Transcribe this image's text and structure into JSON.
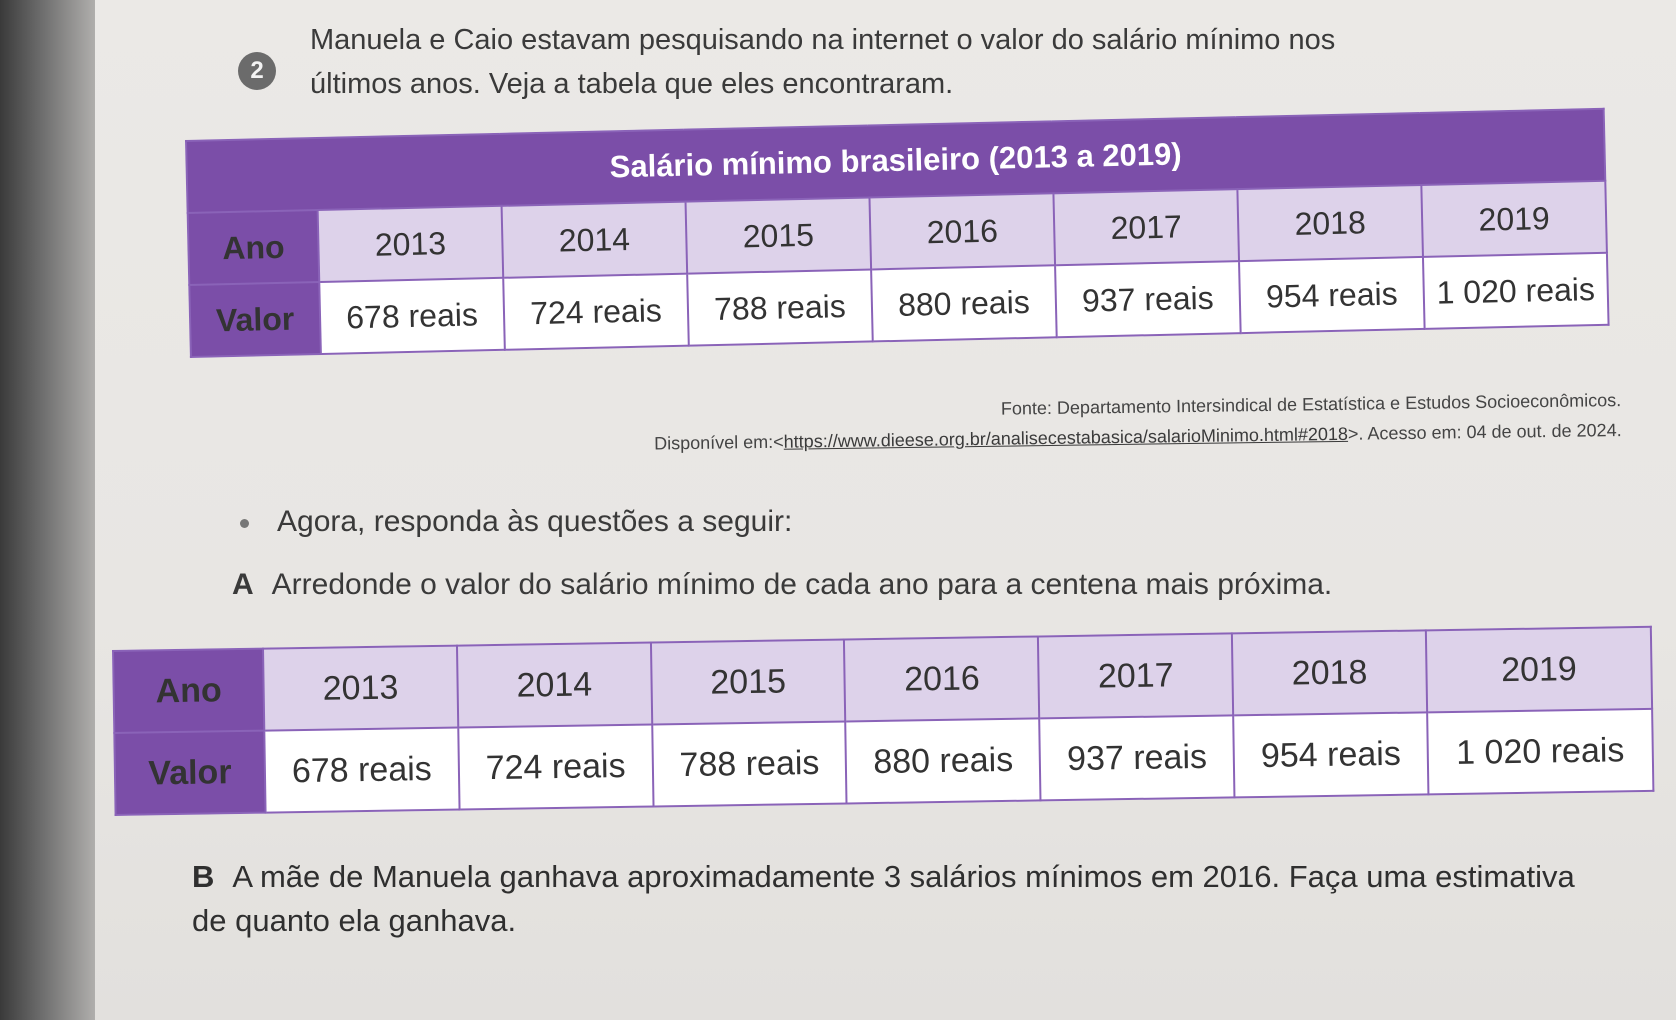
{
  "question": {
    "number": "2",
    "intro_line1": "Manuela e Caio estavam pesquisando na internet o valor do salário mínimo nos",
    "intro_line2": "últimos anos. Veja a tabela que eles encontraram."
  },
  "table1": {
    "title": "Salário mínimo brasileiro (2013 a 2019)",
    "row_year_label": "Ano",
    "row_value_label": "Valor",
    "years": [
      "2013",
      "2014",
      "2015",
      "2016",
      "2017",
      "2018",
      "2019"
    ],
    "values": [
      "678 reais",
      "724 reais",
      "788 reais",
      "880 reais",
      "937 reais",
      "954 reais",
      "1 020 reais"
    ]
  },
  "source": {
    "line1": "Fonte: Departamento Intersindical de Estatística e Estudos Socioeconômicos.",
    "prefix": "Disponível em:<",
    "url": "https://www.dieese.org.br/analisecestabasica/salarioMinimo.html#2018",
    "suffix": ">. Acesso em: 04 de out. de 2024."
  },
  "bullet_text": "Agora, responda às questões a seguir:",
  "part_a": {
    "letter": "A",
    "text": "Arredonde o valor do salário mínimo de cada ano para a centena mais próxima."
  },
  "table2": {
    "row_year_label": "Ano",
    "row_value_label": "Valor",
    "years": [
      "2013",
      "2014",
      "2015",
      "2016",
      "2017",
      "2018",
      "2019"
    ],
    "values": [
      "678 reais",
      "724 reais",
      "788 reais",
      "880 reais",
      "937 reais",
      "954 reais",
      "1 020 reais"
    ]
  },
  "part_b": {
    "letter": "B",
    "text": "A mãe de Manuela ganhava aproximadamente 3 salários mínimos em 2016. Faça uma estimativa de quanto ela ganhava."
  }
}
